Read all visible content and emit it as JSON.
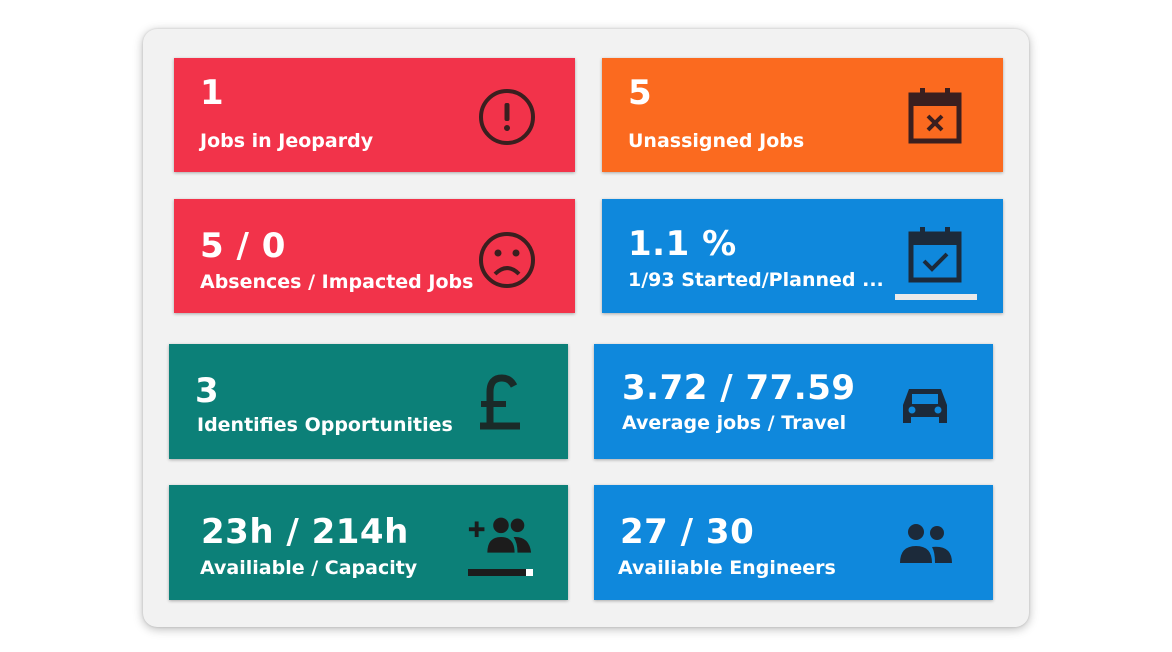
{
  "colors": {
    "red": "#f2334a",
    "orange": "#fb6a1f",
    "blue": "#0f88dc",
    "teal": "#0c8078",
    "icon_dark": "#3a1f1f",
    "panel_bg": "#f2f2f2"
  },
  "tiles": [
    {
      "value": "1",
      "label": "Jobs in Jeopardy",
      "icon": "exclamation-circle-icon",
      "color": "red"
    },
    {
      "value": "5",
      "label": "Unassigned Jobs",
      "icon": "calendar-x-icon",
      "color": "orange"
    },
    {
      "value": "5 / 0",
      "label": "Absences / Impacted Jobs",
      "icon": "sad-face-icon",
      "color": "red"
    },
    {
      "value": "1.1 %",
      "label": "1/93 Started/Planned ...",
      "icon": "calendar-check-icon",
      "color": "blue",
      "progress_percent": 1.1
    },
    {
      "value": "3",
      "label": "Identifies Opportunities",
      "icon": "pound-icon",
      "color": "teal"
    },
    {
      "value": "3.72 / 77.59",
      "label": "Average jobs / Travel",
      "icon": "car-icon",
      "color": "blue"
    },
    {
      "value": "23h / 214h",
      "label": "Availiable / Capacity",
      "icon": "add-people-icon",
      "color": "teal"
    },
    {
      "value": "27 / 30",
      "label": "Availiable Engineers",
      "icon": "people-icon",
      "color": "blue"
    }
  ]
}
